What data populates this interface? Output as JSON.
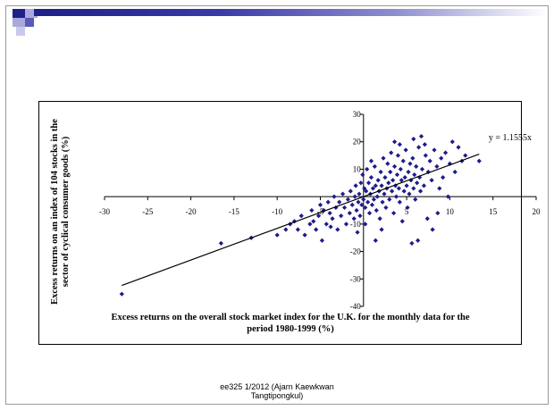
{
  "chart_data": {
    "type": "scatter",
    "title": "",
    "xlabel": "Excess returns on the overall stock market index for the U.K. for the monthly data for the period 1980-1999 (%)",
    "ylabel": "Excess returns on an index of 104 stocks in the sector of cyclical consumer goods (%)",
    "xlim": [
      -30,
      20
    ],
    "ylim": [
      -40,
      30
    ],
    "x_ticks": [
      -30,
      -25,
      -20,
      -15,
      -10,
      -5,
      0,
      5,
      10,
      15,
      20
    ],
    "y_ticks": [
      -40,
      -30,
      -20,
      -10,
      10,
      20,
      30
    ],
    "trendline": {
      "slope": 1.1555,
      "x_range": [
        -28,
        13.4
      ],
      "label": "y = 1.1555x"
    },
    "marker_color": "#1c1c8c",
    "points": [
      [
        -28,
        -35.5
      ],
      [
        -16.5,
        -17
      ],
      [
        -13,
        -15
      ],
      [
        -10,
        -14
      ],
      [
        -9,
        -12
      ],
      [
        -8.5,
        -10
      ],
      [
        -8,
        -9
      ],
      [
        -7.6,
        -12
      ],
      [
        -7.2,
        -7
      ],
      [
        -6.8,
        -14
      ],
      [
        -6.2,
        -10
      ],
      [
        -6,
        -5
      ],
      [
        -5.8,
        -9
      ],
      [
        -5.5,
        -12
      ],
      [
        -5.2,
        -7
      ],
      [
        -5,
        -3
      ],
      [
        -4.8,
        -16
      ],
      [
        -4.6,
        -5
      ],
      [
        -4.3,
        -10
      ],
      [
        -4.1,
        -2
      ],
      [
        -3.9,
        -6
      ],
      [
        -3.6,
        -8
      ],
      [
        -3.4,
        0
      ],
      [
        -3.2,
        -4
      ],
      [
        -3,
        -12
      ],
      [
        -2.8,
        -2
      ],
      [
        -2.6,
        -7
      ],
      [
        -2.4,
        1
      ],
      [
        -2.2,
        -4
      ],
      [
        -2,
        -10
      ],
      [
        -1.8,
        -1
      ],
      [
        -1.6,
        -6
      ],
      [
        -1.5,
        2
      ],
      [
        -1.3,
        -3
      ],
      [
        -1.1,
        -8
      ],
      [
        -1,
        0
      ],
      [
        -0.9,
        4
      ],
      [
        -0.8,
        -5
      ],
      [
        -0.7,
        -13
      ],
      [
        -0.6,
        -2
      ],
      [
        -0.5,
        1
      ],
      [
        -0.4,
        -7
      ],
      [
        -0.3,
        5
      ],
      [
        -0.2,
        -3
      ],
      [
        -0.1,
        8
      ],
      [
        0,
        -1
      ],
      [
        0.1,
        3
      ],
      [
        0.2,
        -4
      ],
      [
        0.2,
        -10
      ],
      [
        0.3,
        2
      ],
      [
        0.4,
        10
      ],
      [
        0.5,
        -2
      ],
      [
        0.6,
        5
      ],
      [
        0.7,
        -6
      ],
      [
        0.8,
        1
      ],
      [
        0.9,
        7
      ],
      [
        1,
        -3
      ],
      [
        1.1,
        3
      ],
      [
        1.2,
        -1
      ],
      [
        1.3,
        11
      ],
      [
        1.4,
        4
      ],
      [
        1.5,
        -5
      ],
      [
        1.6,
        0
      ],
      [
        1.7,
        6
      ],
      [
        1.8,
        2
      ],
      [
        1.9,
        -8
      ],
      [
        2,
        9
      ],
      [
        2.1,
        4
      ],
      [
        2.2,
        -2
      ],
      [
        2.3,
        14
      ],
      [
        2.4,
        1
      ],
      [
        2.5,
        7
      ],
      [
        2.6,
        -4
      ],
      [
        2.7,
        3
      ],
      [
        2.8,
        12
      ],
      [
        2.9,
        5
      ],
      [
        3,
        -1
      ],
      [
        3.1,
        9
      ],
      [
        3.2,
        16
      ],
      [
        3.3,
        2
      ],
      [
        3.4,
        6
      ],
      [
        3.5,
        -6
      ],
      [
        3.6,
        11
      ],
      [
        3.7,
        4
      ],
      [
        3.8,
        0
      ],
      [
        3.9,
        8
      ],
      [
        4,
        15
      ],
      [
        4.1,
        3
      ],
      [
        4.2,
        -2
      ],
      [
        4.3,
        10
      ],
      [
        4.4,
        6
      ],
      [
        4.5,
        -9
      ],
      [
        4.6,
        13
      ],
      [
        4.7,
        2
      ],
      [
        4.8,
        7
      ],
      [
        4.9,
        17
      ],
      [
        5,
        4
      ],
      [
        5.1,
        -4
      ],
      [
        5.2,
        9
      ],
      [
        5.3,
        1
      ],
      [
        5.4,
        12
      ],
      [
        5.5,
        6
      ],
      [
        5.6,
        -17
      ],
      [
        5.7,
        14
      ],
      [
        5.8,
        3
      ],
      [
        5.9,
        8
      ],
      [
        6,
        -1
      ],
      [
        6.1,
        11
      ],
      [
        6.2,
        5
      ],
      [
        6.3,
        -16
      ],
      [
        6.4,
        18
      ],
      [
        6.5,
        7
      ],
      [
        6.6,
        2
      ],
      [
        6.7,
        22
      ],
      [
        6.8,
        10
      ],
      [
        7,
        4
      ],
      [
        7.2,
        15
      ],
      [
        7.4,
        -8
      ],
      [
        7.5,
        9
      ],
      [
        7.7,
        13
      ],
      [
        7.9,
        6
      ],
      [
        8,
        -12
      ],
      [
        8.2,
        17
      ],
      [
        8.5,
        11
      ],
      [
        8.8,
        3
      ],
      [
        9,
        14
      ],
      [
        9.2,
        7
      ],
      [
        9.5,
        16
      ],
      [
        9.8,
        0
      ],
      [
        10,
        12
      ],
      [
        10.3,
        20
      ],
      [
        10.6,
        9
      ],
      [
        11,
        18
      ],
      [
        11.4,
        13
      ],
      [
        11.8,
        15
      ],
      [
        13.4,
        13
      ],
      [
        2.1,
        -12
      ],
      [
        1.4,
        -16
      ],
      [
        -3.8,
        -11
      ],
      [
        0.9,
        13
      ],
      [
        3.6,
        20
      ],
      [
        4.2,
        19
      ],
      [
        8.6,
        -6
      ],
      [
        5.8,
        21
      ],
      [
        7.1,
        19
      ]
    ]
  },
  "footer": {
    "line1": "ee325 1/2012 (Ajarn Kaewkwan",
    "line2": "Tangtipongkul)"
  },
  "colors": {
    "accent_dark": "#20208a",
    "accent_mid": "#5a5ab8",
    "accent_light": "#a9a9de"
  }
}
